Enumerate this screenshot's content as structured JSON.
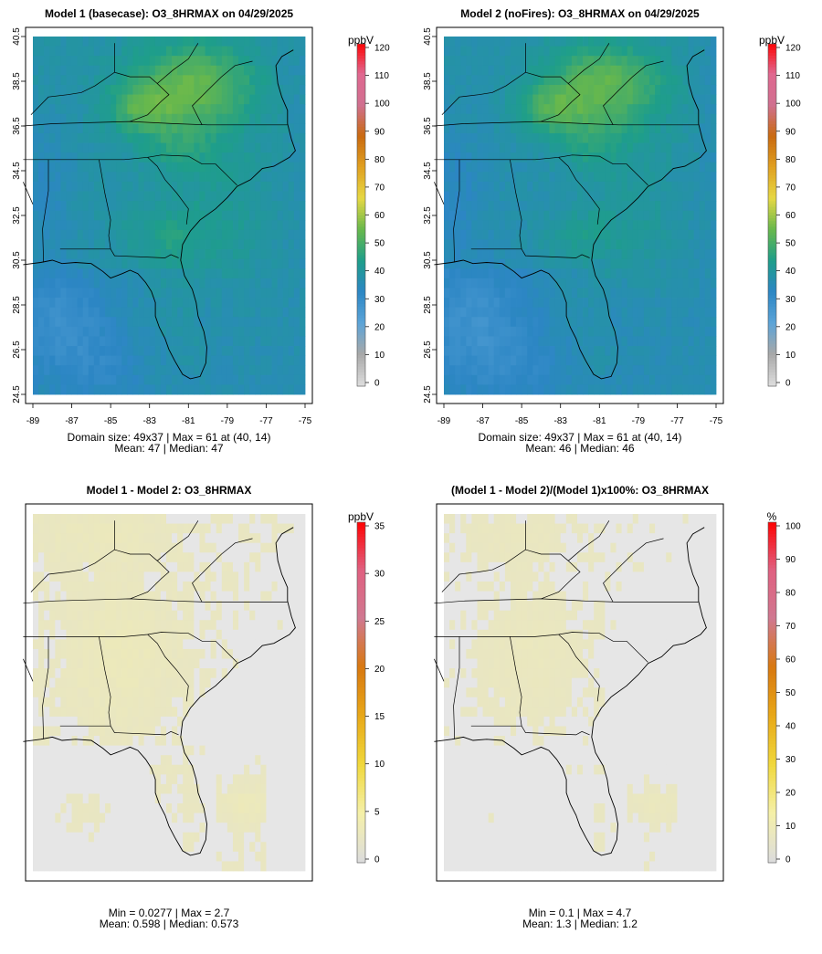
{
  "chart_data": [
    {
      "type": "heatmap",
      "title": "Model 1 (basecase): O3_8HRMAX on 04/29/2025",
      "variable": "O3_8HRMAX",
      "units": "ppbV",
      "domain_cols": 49,
      "domain_rows": 37,
      "x_ticks": [
        "-89",
        "-87",
        "-85",
        "-83",
        "-81",
        "-79",
        "-77",
        "-75"
      ],
      "y_ticks": [
        "24.5",
        "26.5",
        "28.5",
        "30.5",
        "32.5",
        "34.5",
        "36.5",
        "38.5",
        "40.5"
      ],
      "x_range": [
        -89,
        -75
      ],
      "y_range": [
        24.5,
        40.5
      ],
      "colorbar_ticks": [
        "0",
        "10",
        "20",
        "30",
        "40",
        "50",
        "60",
        "70",
        "80",
        "90",
        "100",
        "110",
        "120"
      ],
      "colorbar_range": [
        0,
        120
      ],
      "field": {
        "min": 33,
        "max": 61,
        "mean": 47,
        "median": 47,
        "max_location": "(40, 14)"
      },
      "stats_line1": "Domain size: 49x37 | Max = 61 at (40, 14)",
      "stats_line2": "Mean: 47 |  Median: 47"
    },
    {
      "type": "heatmap",
      "title": "Model 2 (noFires): O3_8HRMAX on 04/29/2025",
      "variable": "O3_8HRMAX",
      "units": "ppbV",
      "domain_cols": 49,
      "domain_rows": 37,
      "x_ticks": [
        "-89",
        "-87",
        "-85",
        "-83",
        "-81",
        "-79",
        "-77",
        "-75"
      ],
      "y_ticks": [
        "24.5",
        "26.5",
        "28.5",
        "30.5",
        "32.5",
        "34.5",
        "36.5",
        "38.5",
        "40.5"
      ],
      "x_range": [
        -89,
        -75
      ],
      "y_range": [
        24.5,
        40.5
      ],
      "colorbar_ticks": [
        "0",
        "10",
        "20",
        "30",
        "40",
        "50",
        "60",
        "70",
        "80",
        "90",
        "100",
        "110",
        "120"
      ],
      "colorbar_range": [
        0,
        120
      ],
      "field": {
        "min": 32,
        "max": 61,
        "mean": 46,
        "median": 46,
        "max_location": "(40, 14)"
      },
      "stats_line1": "Domain size: 49x37 | Max = 61 at (40, 14)",
      "stats_line2": "Mean: 46 |  Median: 46"
    },
    {
      "type": "heatmap",
      "title": "Model 1 - Model 2: O3_8HRMAX",
      "variable": "O3_8HRMAX",
      "units": "ppbV",
      "colorbar_ticks": [
        "0",
        "5",
        "10",
        "15",
        "20",
        "25",
        "30",
        "35"
      ],
      "colorbar_range": [
        0,
        35
      ],
      "field": {
        "min": 0.0277,
        "max": 2.7,
        "mean": 0.598,
        "median": 0.573
      },
      "stats_line1": "Min = 0.0277 | Max = 2.7",
      "stats_line2": "Mean: 0.598 |  Median: 0.573"
    },
    {
      "type": "heatmap",
      "title": "(Model 1 - Model 2)/(Model 1)x100%: O3_8HRMAX",
      "variable": "O3_8HRMAX",
      "units": "%",
      "colorbar_ticks": [
        "0",
        "10",
        "20",
        "30",
        "40",
        "50",
        "60",
        "70",
        "80",
        "90",
        "100"
      ],
      "colorbar_range": [
        0,
        100
      ],
      "field": {
        "min": 0.1,
        "max": 4.7,
        "mean": 1.3,
        "median": 1.2
      },
      "stats_line1": "Min = 0.1 | Max = 4.7",
      "stats_line2": "Mean: 1.3 |  Median: 1.2"
    }
  ],
  "colors": {
    "conc_scale": [
      "#dcdcdc",
      "#a8a8a8",
      "#5ba4d8",
      "#2c86c4",
      "#1e9e8a",
      "#68b84c",
      "#e6d844",
      "#e0a020",
      "#c96a10",
      "#d07090",
      "#e06890",
      "#ff0000"
    ],
    "diff_scale": [
      "#dcdcdc",
      "#f5f0a8",
      "#f0d83c",
      "#e8a818",
      "#d87810",
      "#d07890",
      "#e06080",
      "#ff0000"
    ],
    "diff_background": "#e6e6e6",
    "boundary": "#000000"
  }
}
